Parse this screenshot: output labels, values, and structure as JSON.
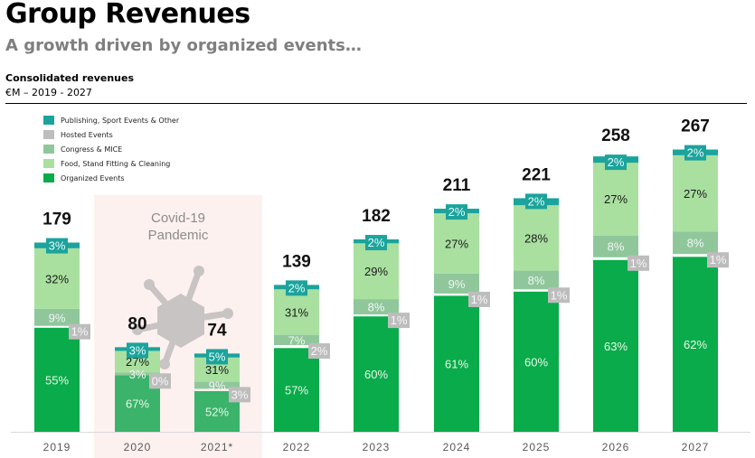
{
  "header": {
    "title": "Group Revenues",
    "subtitle": "A growth driven by organized events…",
    "chart_label": "Consolidated revenues",
    "period": "€M – 2019 - 2027"
  },
  "colors": {
    "publishing": "#1ba39c",
    "hosted": "#bdbdbd",
    "congress": "#8fc79b",
    "food": "#a9e0a0",
    "organized": "#0aab4a",
    "organized_covid": "#3bb36a",
    "covid_band": "#fcf1ef",
    "virus": "#c9c4c4",
    "axis": "#d9d9d9"
  },
  "annotation": {
    "covid_label_line1": "Covid-19",
    "covid_label_line2": "Pandemic",
    "covid_years": [
      "2020",
      "2021*"
    ],
    "icon": "virus-icon"
  },
  "chart_data": {
    "type": "bar",
    "stacked": true,
    "title": "Consolidated revenues",
    "xlabel": "",
    "ylabel": "€M",
    "categories": [
      "2019",
      "2020",
      "2021*",
      "2022",
      "2023",
      "2024",
      "2025",
      "2026",
      "2027"
    ],
    "totals": [
      179,
      80,
      74,
      139,
      182,
      211,
      221,
      258,
      267
    ],
    "ylim": [
      0,
      280
    ],
    "grid": false,
    "legend_position": "top-left",
    "series": [
      {
        "name": "Organized Events",
        "key": "organized",
        "values": [
          55,
          67,
          52,
          57,
          60,
          61,
          60,
          63,
          62
        ]
      },
      {
        "name": "Hosted Events",
        "key": "hosted",
        "values": [
          1,
          0,
          3,
          2,
          1,
          1,
          1,
          1,
          1
        ]
      },
      {
        "name": "Congress & MICE",
        "key": "congress",
        "values": [
          9,
          3,
          9,
          7,
          8,
          9,
          8,
          8,
          8
        ]
      },
      {
        "name": "Food, Stand Fitting & Cleaning",
        "key": "food",
        "values": [
          32,
          27,
          31,
          31,
          29,
          27,
          28,
          27,
          27
        ]
      },
      {
        "name": "Publishing, Sport Events & Other",
        "key": "publishing",
        "values": [
          3,
          3,
          5,
          2,
          2,
          2,
          2,
          2,
          2
        ]
      }
    ],
    "value_unit": "%",
    "legend_order": [
      "Publishing, Sport Events & Other",
      "Hosted Events",
      "Congress & MICE",
      "Food, Stand Fitting & Cleaning",
      "Organized Events"
    ]
  }
}
